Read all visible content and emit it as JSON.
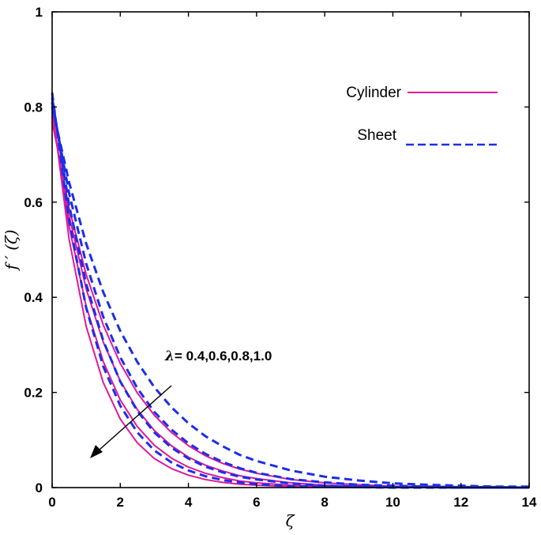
{
  "chart_data": {
    "type": "line",
    "title": "",
    "xlabel": "ζ",
    "ylabel": "f ′ (ζ)",
    "xlim": [
      0,
      14
    ],
    "ylim": [
      0,
      1
    ],
    "xticks": [
      "0",
      "2",
      "4",
      "6",
      "8",
      "10",
      "12",
      "14"
    ],
    "yticks": [
      "0",
      "0.2",
      "0.4",
      "0.6",
      "0.8",
      "1"
    ],
    "grid": false,
    "legend": {
      "placement": "top-right",
      "entries": [
        "Cylinder",
        "Sheet"
      ]
    },
    "colors": {
      "Cylinder": "#e0189a",
      "Sheet": "#1c2ee8"
    },
    "annotation": {
      "symbol": "λ",
      "text": "= 0.4,0.6,0.8,1.0"
    },
    "x": [
      0,
      0.5,
      1,
      1.5,
      2,
      2.5,
      3,
      3.5,
      4,
      4.5,
      5,
      5.5,
      6,
      7,
      8,
      9,
      10,
      11,
      12,
      13,
      14
    ],
    "series": [
      {
        "name": "Cylinder",
        "lambda": 0.4,
        "values": [
          0.8,
          0.521,
          0.339,
          0.221,
          0.144,
          0.094,
          0.061,
          0.04,
          0.026,
          0.017,
          0.011,
          0.007,
          0.005,
          0.002,
          0.001,
          0,
          0,
          0,
          0,
          0,
          0
        ]
      },
      {
        "name": "Cylinder",
        "lambda": 0.6,
        "values": [
          0.79,
          0.549,
          0.381,
          0.265,
          0.184,
          0.128,
          0.089,
          0.062,
          0.043,
          0.03,
          0.021,
          0.014,
          0.01,
          0.005,
          0.002,
          0.001,
          0.001,
          0,
          0,
          0,
          0
        ]
      },
      {
        "name": "Cylinder",
        "lambda": 0.8,
        "values": [
          0.78,
          0.571,
          0.418,
          0.306,
          0.224,
          0.164,
          0.12,
          0.088,
          0.064,
          0.047,
          0.035,
          0.025,
          0.019,
          0.01,
          0.005,
          0.003,
          0.001,
          0.001,
          0,
          0,
          0
        ]
      },
      {
        "name": "Cylinder",
        "lambda": 1.0,
        "values": [
          0.77,
          0.587,
          0.448,
          0.342,
          0.261,
          0.199,
          0.152,
          0.116,
          0.088,
          0.067,
          0.051,
          0.039,
          0.03,
          0.017,
          0.01,
          0.006,
          0.003,
          0.002,
          0.001,
          0.001,
          0
        ]
      },
      {
        "name": "Sheet",
        "lambda": 0.4,
        "values": [
          0.83,
          0.56,
          0.378,
          0.255,
          0.172,
          0.116,
          0.078,
          0.053,
          0.036,
          0.024,
          0.016,
          0.011,
          0.007,
          0.003,
          0.002,
          0.001,
          0,
          0,
          0,
          0,
          0
        ]
      },
      {
        "name": "Sheet",
        "lambda": 0.6,
        "values": [
          0.82,
          0.593,
          0.428,
          0.309,
          0.223,
          0.161,
          0.116,
          0.084,
          0.061,
          0.044,
          0.032,
          0.023,
          0.017,
          0.009,
          0.004,
          0.002,
          0.001,
          0.001,
          0,
          0,
          0
        ]
      },
      {
        "name": "Sheet",
        "lambda": 0.8,
        "values": [
          0.81,
          0.618,
          0.471,
          0.359,
          0.274,
          0.209,
          0.159,
          0.122,
          0.093,
          0.071,
          0.054,
          0.041,
          0.031,
          0.018,
          0.011,
          0.006,
          0.004,
          0.002,
          0.001,
          0.001,
          0
        ]
      },
      {
        "name": "Sheet",
        "lambda": 1.0,
        "values": [
          0.8,
          0.641,
          0.513,
          0.411,
          0.329,
          0.264,
          0.211,
          0.169,
          0.135,
          0.108,
          0.087,
          0.069,
          0.056,
          0.036,
          0.023,
          0.015,
          0.009,
          0.006,
          0.004,
          0.002,
          0.002
        ]
      }
    ]
  }
}
